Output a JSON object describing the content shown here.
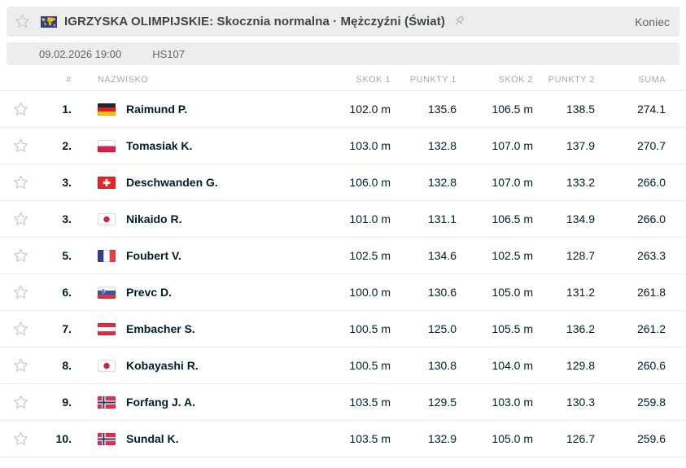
{
  "header": {
    "title": "IGRZYSKA OLIMPIJSKIE: Skocznia normalna · Mężczyźni (Świat)",
    "status": "Koniec"
  },
  "meta": {
    "datetime": "09.02.2026 19:00",
    "hill": "HS107"
  },
  "table": {
    "columns": {
      "rank": "#",
      "name": "NAZWISKO",
      "jump1": "SKOK 1",
      "points1": "PUNKTY 1",
      "jump2": "SKOK 2",
      "points2": "PUNKTY 2",
      "total": "SUMA"
    },
    "rows": [
      {
        "rank": "1.",
        "flag": "de",
        "name": "Raimund P.",
        "jump1": "102.0 m",
        "points1": "135.6",
        "jump2": "106.5 m",
        "points2": "138.5",
        "total": "274.1"
      },
      {
        "rank": "2.",
        "flag": "pl",
        "name": "Tomasiak K.",
        "jump1": "103.0 m",
        "points1": "132.8",
        "jump2": "107.0 m",
        "points2": "137.9",
        "total": "270.7"
      },
      {
        "rank": "3.",
        "flag": "ch",
        "name": "Deschwanden G.",
        "jump1": "106.0 m",
        "points1": "132.8",
        "jump2": "107.0 m",
        "points2": "133.2",
        "total": "266.0"
      },
      {
        "rank": "3.",
        "flag": "jp",
        "name": "Nikaido R.",
        "jump1": "101.0 m",
        "points1": "131.1",
        "jump2": "106.5 m",
        "points2": "134.9",
        "total": "266.0"
      },
      {
        "rank": "5.",
        "flag": "fr",
        "name": "Foubert V.",
        "jump1": "102.5 m",
        "points1": "134.6",
        "jump2": "102.5 m",
        "points2": "128.7",
        "total": "263.3"
      },
      {
        "rank": "6.",
        "flag": "si",
        "name": "Prevc D.",
        "jump1": "100.0 m",
        "points1": "130.6",
        "jump2": "105.0 m",
        "points2": "131.2",
        "total": "261.8"
      },
      {
        "rank": "7.",
        "flag": "at",
        "name": "Embacher S.",
        "jump1": "100.5 m",
        "points1": "125.0",
        "jump2": "105.5 m",
        "points2": "136.2",
        "total": "261.2"
      },
      {
        "rank": "8.",
        "flag": "jp",
        "name": "Kobayashi R.",
        "jump1": "100.5 m",
        "points1": "130.8",
        "jump2": "104.0 m",
        "points2": "129.8",
        "total": "260.6"
      },
      {
        "rank": "9.",
        "flag": "no",
        "name": "Forfang J. A.",
        "jump1": "103.5 m",
        "points1": "129.5",
        "jump2": "103.0 m",
        "points2": "130.3",
        "total": "259.8"
      },
      {
        "rank": "10.",
        "flag": "no",
        "name": "Sundal K.",
        "jump1": "103.5 m",
        "points1": "132.9",
        "jump2": "105.0 m",
        "points2": "126.7",
        "total": "259.6"
      }
    ]
  },
  "icons": {
    "favorite": "star-outline-icon",
    "pin": "pin-icon",
    "tournament": "world-flag-icon"
  },
  "colors": {
    "bar_bg": "#ededed",
    "text_dark": "#001e28",
    "text_gray": "#5f6568",
    "column_header_gray": "#a3a9ab",
    "row_separator": "#ededed",
    "world_flag_blue": "#2b3e98",
    "world_flag_yellow": "#f3c000"
  }
}
